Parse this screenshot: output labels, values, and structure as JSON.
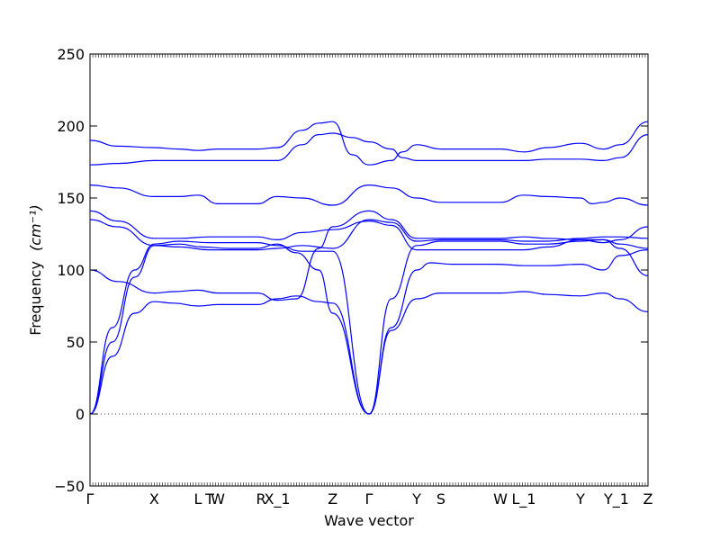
{
  "chart_data": {
    "type": "line",
    "xlabel": "Wave vector",
    "ylabel": "Frequency",
    "ylabel_unit": "(cm⁻¹)",
    "ylim": [
      -50,
      250
    ],
    "yticks": [
      -50,
      0,
      50,
      100,
      150,
      200,
      250
    ],
    "xlim": [
      0,
      1
    ],
    "kpoint_labels": [
      {
        "label": "Γ",
        "x": 0.0
      },
      {
        "label": "X",
        "x": 0.115
      },
      {
        "label": "L",
        "x": 0.1935
      },
      {
        "label": "T",
        "x": 0.2145
      },
      {
        "label": "W",
        "x": 0.229
      },
      {
        "label": "R",
        "x": 0.3065
      },
      {
        "label": "X_1",
        "x": 0.3355
      },
      {
        "label": "Z",
        "x": 0.435
      },
      {
        "label": "Γ",
        "x": 0.5
      },
      {
        "label": "Y",
        "x": 0.5855
      },
      {
        "label": "S",
        "x": 0.629
      },
      {
        "label": "W",
        "x": 0.7355
      },
      {
        "label": "L_1",
        "x": 0.7775
      },
      {
        "label": "Y",
        "x": 0.879
      },
      {
        "label": "Y_1",
        "x": 0.9435
      },
      {
        "label": "Z",
        "x": 1.0
      }
    ],
    "zero_line": true,
    "series": [
      {
        "points": [
          [
            0,
            0
          ],
          [
            0.04,
            50
          ],
          [
            0.08,
            95
          ],
          [
            0.115,
            117
          ],
          [
            0.16,
            118
          ],
          [
            0.2,
            116
          ],
          [
            0.25,
            115
          ],
          [
            0.3,
            115
          ],
          [
            0.335,
            118
          ],
          [
            0.37,
            112
          ],
          [
            0.41,
            100
          ],
          [
            0.435,
            70
          ],
          [
            0.5,
            0
          ],
          [
            0.54,
            60
          ],
          [
            0.5855,
            100
          ],
          [
            0.61,
            105
          ],
          [
            0.65,
            104
          ],
          [
            0.73,
            104
          ],
          [
            0.78,
            103
          ],
          [
            0.82,
            103
          ],
          [
            0.879,
            104
          ],
          [
            0.92,
            100
          ],
          [
            0.95,
            110
          ],
          [
            1.0,
            114
          ]
        ]
      },
      {
        "points": [
          [
            0,
            0
          ],
          [
            0.04,
            40
          ],
          [
            0.08,
            70
          ],
          [
            0.115,
            78
          ],
          [
            0.15,
            77
          ],
          [
            0.1935,
            75
          ],
          [
            0.229,
            76
          ],
          [
            0.3,
            76
          ],
          [
            0.335,
            80
          ],
          [
            0.37,
            82
          ],
          [
            0.41,
            78
          ],
          [
            0.435,
            77
          ],
          [
            0.5,
            0
          ],
          [
            0.54,
            58
          ],
          [
            0.5855,
            80
          ],
          [
            0.629,
            84
          ],
          [
            0.7355,
            84
          ],
          [
            0.7775,
            85
          ],
          [
            0.82,
            83
          ],
          [
            0.879,
            82
          ],
          [
            0.92,
            84
          ],
          [
            0.95,
            80
          ],
          [
            1.0,
            71
          ]
        ]
      },
      {
        "points": [
          [
            0,
            0
          ],
          [
            0.04,
            60
          ],
          [
            0.08,
            100
          ],
          [
            0.115,
            118
          ],
          [
            0.16,
            120
          ],
          [
            0.2145,
            119
          ],
          [
            0.3,
            119
          ],
          [
            0.335,
            117
          ],
          [
            0.38,
            113
          ],
          [
            0.435,
            113
          ],
          [
            0.5,
            0
          ],
          [
            0.54,
            80
          ],
          [
            0.5855,
            117
          ],
          [
            0.629,
            120
          ],
          [
            0.7355,
            120
          ],
          [
            0.7775,
            118
          ],
          [
            0.82,
            118
          ],
          [
            0.879,
            120
          ],
          [
            0.92,
            121
          ],
          [
            0.95,
            118
          ],
          [
            1.0,
            115
          ]
        ]
      },
      {
        "points": [
          [
            0,
            100
          ],
          [
            0.05,
            92
          ],
          [
            0.115,
            84
          ],
          [
            0.15,
            85
          ],
          [
            0.1935,
            86
          ],
          [
            0.229,
            84
          ],
          [
            0.3,
            84
          ],
          [
            0.335,
            79
          ],
          [
            0.37,
            80
          ],
          [
            0.41,
            115
          ],
          [
            0.435,
            130
          ],
          [
            0.5,
            141
          ],
          [
            0.54,
            135
          ],
          [
            0.5855,
            122
          ],
          [
            0.629,
            122
          ],
          [
            0.7355,
            122
          ],
          [
            0.7775,
            123
          ],
          [
            0.82,
            122
          ],
          [
            0.879,
            121
          ],
          [
            0.92,
            119
          ],
          [
            0.95,
            121
          ],
          [
            1.0,
            130
          ]
        ]
      },
      {
        "points": [
          [
            0,
            135
          ],
          [
            0.05,
            130
          ],
          [
            0.115,
            117
          ],
          [
            0.16,
            116
          ],
          [
            0.2145,
            114
          ],
          [
            0.3,
            114
          ],
          [
            0.335,
            115
          ],
          [
            0.38,
            117
          ],
          [
            0.435,
            115
          ],
          [
            0.5,
            135
          ],
          [
            0.54,
            133
          ],
          [
            0.5855,
            120
          ],
          [
            0.629,
            121
          ],
          [
            0.7355,
            121
          ],
          [
            0.7775,
            120
          ],
          [
            0.82,
            120
          ],
          [
            0.879,
            122
          ],
          [
            0.92,
            123
          ],
          [
            0.95,
            123
          ],
          [
            1.0,
            122
          ]
        ]
      },
      {
        "points": [
          [
            0,
            141
          ],
          [
            0.05,
            134
          ],
          [
            0.115,
            122
          ],
          [
            0.16,
            122
          ],
          [
            0.2145,
            123
          ],
          [
            0.3,
            123
          ],
          [
            0.335,
            121
          ],
          [
            0.38,
            126
          ],
          [
            0.435,
            128
          ],
          [
            0.5,
            134
          ],
          [
            0.54,
            131
          ],
          [
            0.5855,
            114
          ],
          [
            0.629,
            114
          ],
          [
            0.7355,
            114
          ],
          [
            0.7775,
            114
          ],
          [
            0.82,
            116
          ],
          [
            0.879,
            121
          ],
          [
            0.92,
            121
          ],
          [
            0.95,
            115
          ],
          [
            1.0,
            96
          ]
        ]
      },
      {
        "points": [
          [
            0,
            159
          ],
          [
            0.05,
            157
          ],
          [
            0.115,
            151
          ],
          [
            0.16,
            151
          ],
          [
            0.1935,
            152
          ],
          [
            0.229,
            146
          ],
          [
            0.3,
            146
          ],
          [
            0.335,
            151
          ],
          [
            0.38,
            150
          ],
          [
            0.435,
            145
          ],
          [
            0.5,
            159
          ],
          [
            0.54,
            157
          ],
          [
            0.5855,
            150
          ],
          [
            0.629,
            147
          ],
          [
            0.7355,
            147
          ],
          [
            0.7775,
            152
          ],
          [
            0.82,
            151
          ],
          [
            0.879,
            150
          ],
          [
            0.9,
            146
          ],
          [
            0.92,
            147
          ],
          [
            0.95,
            150
          ],
          [
            1.0,
            145
          ]
        ]
      },
      {
        "points": [
          [
            0,
            173
          ],
          [
            0.05,
            174
          ],
          [
            0.115,
            176
          ],
          [
            0.16,
            176
          ],
          [
            0.2145,
            176
          ],
          [
            0.3,
            176
          ],
          [
            0.335,
            176
          ],
          [
            0.38,
            187
          ],
          [
            0.41,
            194
          ],
          [
            0.435,
            195
          ],
          [
            0.47,
            192
          ],
          [
            0.5,
            189
          ],
          [
            0.54,
            184
          ],
          [
            0.56,
            178
          ],
          [
            0.5855,
            176
          ],
          [
            0.629,
            176
          ],
          [
            0.7355,
            176
          ],
          [
            0.7775,
            176
          ],
          [
            0.82,
            177
          ],
          [
            0.879,
            177
          ],
          [
            0.92,
            176
          ],
          [
            0.95,
            178
          ],
          [
            1.0,
            194
          ]
        ]
      },
      {
        "points": [
          [
            0,
            190
          ],
          [
            0.05,
            186
          ],
          [
            0.115,
            185
          ],
          [
            0.16,
            184
          ],
          [
            0.1935,
            183
          ],
          [
            0.229,
            184
          ],
          [
            0.3,
            184
          ],
          [
            0.335,
            185
          ],
          [
            0.38,
            197
          ],
          [
            0.41,
            202
          ],
          [
            0.435,
            203
          ],
          [
            0.47,
            180
          ],
          [
            0.5,
            173
          ],
          [
            0.54,
            176
          ],
          [
            0.56,
            182
          ],
          [
            0.5855,
            187
          ],
          [
            0.629,
            184
          ],
          [
            0.7355,
            184
          ],
          [
            0.7775,
            182
          ],
          [
            0.82,
            185
          ],
          [
            0.879,
            188
          ],
          [
            0.92,
            184
          ],
          [
            0.95,
            187
          ],
          [
            1.0,
            203
          ]
        ]
      }
    ]
  }
}
